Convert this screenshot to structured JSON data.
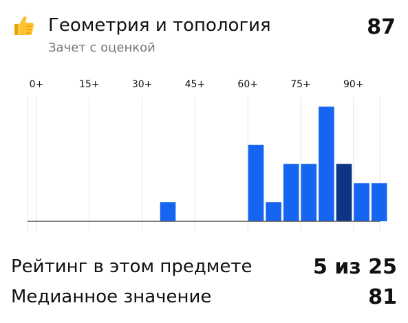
{
  "header": {
    "title": "Геометрия и топология",
    "subtitle": "Зачет с оценкой",
    "score": "87",
    "icon": "thumbs-up-icon"
  },
  "chart_data": {
    "type": "bar",
    "x_tick_labels": [
      "0+",
      "15+",
      "30+",
      "45+",
      "60+",
      "75+",
      "90+"
    ],
    "bin_width": 5,
    "bins": [
      0,
      5,
      10,
      15,
      20,
      25,
      30,
      35,
      40,
      45,
      50,
      55,
      60,
      65,
      70,
      75,
      80,
      85,
      90,
      95
    ],
    "values": [
      0,
      0,
      0,
      0,
      0,
      0,
      0,
      1,
      0,
      0,
      0,
      0,
      4,
      1,
      3,
      3,
      6,
      3,
      2,
      2
    ],
    "highlight_bin": 85,
    "ylim": [
      0,
      6.5
    ],
    "grid": true,
    "colors": {
      "bar": "#1565f0",
      "highlight": "#0d3585",
      "grid": "#e4e4e4",
      "baseline": "#555555"
    }
  },
  "stats": {
    "rank_label": "Рейтинг в этом предмете",
    "rank_value": "5 из 25",
    "median_label": "Медианное значение",
    "median_value": "81"
  }
}
